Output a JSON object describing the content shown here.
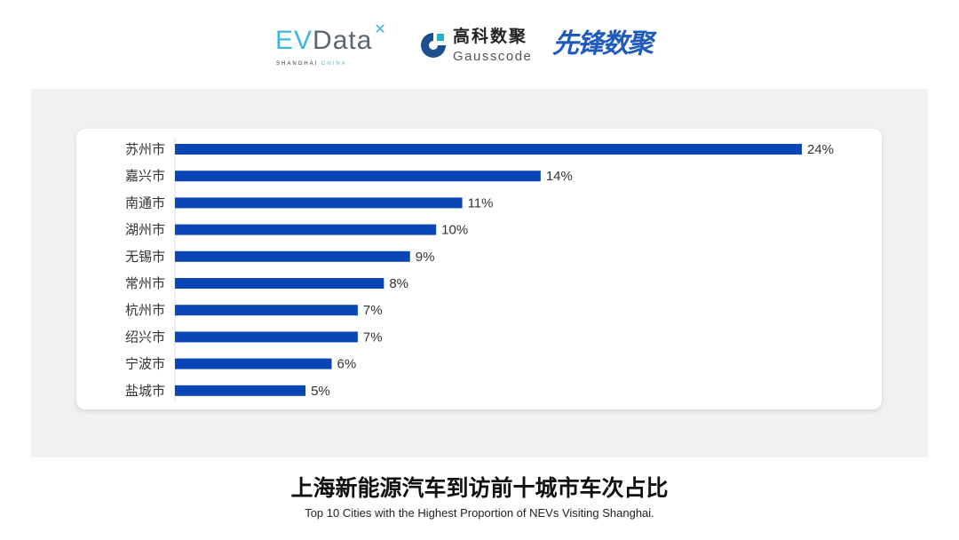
{
  "logos": {
    "evdata": {
      "main_ev": "EV",
      "main_rest": "Data",
      "sub_a": "SHANGHAI",
      "sub_b": "CHINA"
    },
    "gausscode": {
      "cn": "高科数聚",
      "en": "Gausscode"
    },
    "xianfeng": "先锋数聚"
  },
  "colors": {
    "bar": "#0a46b5",
    "panel": "#f1f1f1",
    "card": "#ffffff"
  },
  "chart_data": {
    "type": "bar",
    "orientation": "horizontal",
    "title": "上海新能源汽车到访前十城市车次占比",
    "subtitle": "Top 10 Cities with the Highest Proportion of  NEVs Visiting Shanghai.",
    "categories": [
      "苏州市",
      "嘉兴市",
      "南通市",
      "湖州市",
      "无锡市",
      "常州市",
      "杭州市",
      "绍兴市",
      "宁波市",
      "盐城市"
    ],
    "values": [
      24,
      14,
      11,
      10,
      9,
      8,
      7,
      7,
      6,
      5
    ],
    "data_labels": [
      "24%",
      "14%",
      "11%",
      "10%",
      "9%",
      "8%",
      "7%",
      "7%",
      "6%",
      "5%"
    ],
    "unit": "%",
    "xlim": [
      0,
      24
    ],
    "grid": false,
    "legend": "none"
  }
}
